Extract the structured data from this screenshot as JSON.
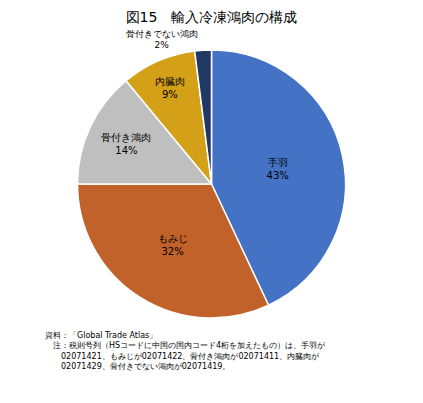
{
  "chart_data": {
    "type": "pie",
    "title": "図15　輸入冷凍鴻肉の構成",
    "categories": [
      "手羽",
      "もみじ",
      "骨付き鴻肉",
      "内臓肉",
      "骨付きでない鴻肉"
    ],
    "values": [
      43,
      32,
      14,
      9,
      2
    ],
    "value_labels": [
      "43%",
      "32%",
      "14%",
      "9%",
      "2%"
    ],
    "colors": [
      "#4472C4",
      "#C0622A",
      "#BFBFBF",
      "#D4A017",
      "#1F3864"
    ],
    "data_labels": true,
    "annotations": [
      "資料：「Global Trade Atlas」",
      "　注：税則号列（HSコードに中国の国内コード4桁を加えたもの）は、手羽が",
      "　　02071421、もみじが02071422、骨付き鴻肉が02071411、内臓肉が",
      "　　02071429、骨付きでない鴻肉が02071419。"
    ]
  }
}
